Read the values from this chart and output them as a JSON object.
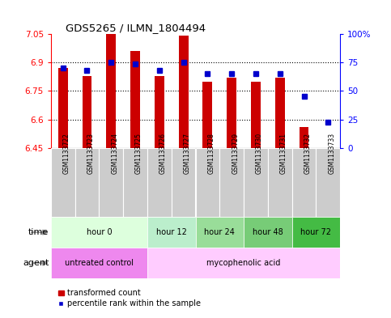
{
  "title": "GDS5265 / ILMN_1804494",
  "samples": [
    "GSM1133722",
    "GSM1133723",
    "GSM1133724",
    "GSM1133725",
    "GSM1133726",
    "GSM1133727",
    "GSM1133728",
    "GSM1133729",
    "GSM1133730",
    "GSM1133731",
    "GSM1133732",
    "GSM1133733"
  ],
  "bar_values": [
    6.87,
    6.83,
    7.06,
    6.96,
    6.83,
    7.04,
    6.8,
    6.82,
    6.8,
    6.82,
    6.56,
    6.45
  ],
  "bar_base": 6.45,
  "percentile_values": [
    70,
    68,
    75,
    74,
    68,
    75,
    65,
    65,
    65,
    65,
    45,
    23
  ],
  "ylim_left": [
    6.45,
    7.05
  ],
  "ylim_right": [
    0,
    100
  ],
  "yticks_left": [
    6.45,
    6.6,
    6.75,
    6.9,
    7.05
  ],
  "yticks_right": [
    0,
    25,
    50,
    75,
    100
  ],
  "ytick_labels_right": [
    "0",
    "25",
    "50",
    "75",
    "100%"
  ],
  "bar_color": "#cc0000",
  "dot_color": "#0000cc",
  "time_groups": [
    {
      "label": "hour 0",
      "start": 0,
      "end": 4,
      "color": "#ddffdd"
    },
    {
      "label": "hour 12",
      "start": 4,
      "end": 6,
      "color": "#bbeecc"
    },
    {
      "label": "hour 24",
      "start": 6,
      "end": 8,
      "color": "#99dd99"
    },
    {
      "label": "hour 48",
      "start": 8,
      "end": 10,
      "color": "#77cc77"
    },
    {
      "label": "hour 72",
      "start": 10,
      "end": 12,
      "color": "#44bb44"
    }
  ],
  "agent_groups": [
    {
      "label": "untreated control",
      "start": 0,
      "end": 4,
      "color": "#ee88ee"
    },
    {
      "label": "mycophenolic acid",
      "start": 4,
      "end": 12,
      "color": "#ffccff"
    }
  ],
  "sample_label_bg": "#cccccc",
  "legend_bar_label": "transformed count",
  "legend_dot_label": "percentile rank within the sample",
  "time_label": "time",
  "agent_label": "agent"
}
